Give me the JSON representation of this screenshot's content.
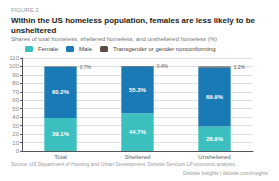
{
  "chart_data": {
    "type": "bar",
    "title": "Within the US homeless population, females are less likely to be unsheltered",
    "subtitle": "Shares of total homeless, sheltered homeless, and unsheltered homeless (%)",
    "annotations": [
      "FIGURE 2",
      "Source: US Department of Housing and Urban Development; Deloitte Services LP economic analysis.",
      "Deloitte Insights | deloitte.com/insights"
    ],
    "categories": [
      "Total",
      "Sheltered",
      "Unsheltered"
    ],
    "series": [
      {
        "name": "Female",
        "color": "#3bbfbf",
        "values": [
          39.1,
          44.7,
          28.9
        ],
        "value_labels": [
          "39.1%",
          "44.7%",
          "28.9%"
        ]
      },
      {
        "name": "Male",
        "color": "#1a7ab5",
        "values": [
          60.2,
          55.3,
          69.9
        ],
        "value_labels": [
          "60.2%",
          "55.3%",
          "69.9%"
        ]
      },
      {
        "name": "Transgender or gender nonconforming",
        "color": "#5a4a42",
        "values": [
          0.7,
          0.4,
          1.2
        ],
        "value_labels": [
          "0.7%",
          "0.4%",
          "1.2%"
        ]
      }
    ],
    "stacked": true,
    "data_labels": true,
    "ylim": [
      0,
      110
    ],
    "yticks": [
      0,
      10,
      20,
      30,
      40,
      50,
      60,
      70,
      80,
      90,
      100,
      110
    ],
    "grid": true,
    "legend": "top"
  }
}
